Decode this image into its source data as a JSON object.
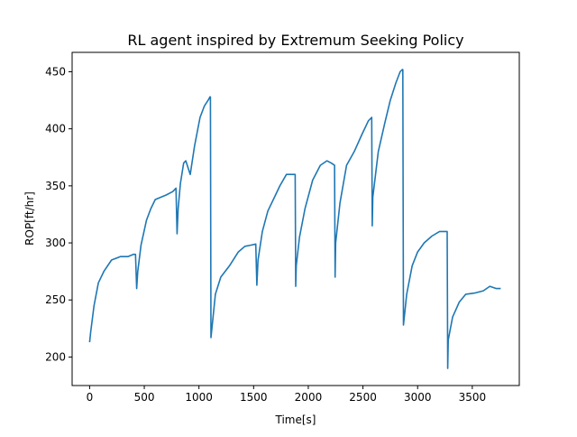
{
  "chart_data": {
    "type": "line",
    "title": "RL agent inspired by Extremum Seeking Policy",
    "xlabel": "Time[s]",
    "ylabel": "ROP[ft/hr]",
    "xlim": [
      -160,
      3930
    ],
    "ylim": [
      175,
      467
    ],
    "xticks": [
      0,
      500,
      1000,
      1500,
      2000,
      2500,
      3000,
      3500
    ],
    "yticks": [
      200,
      250,
      300,
      350,
      400,
      450
    ],
    "grid": false,
    "legend": "none",
    "series": [
      {
        "color": "#1f77b4",
        "x": [
          0,
          10,
          40,
          80,
          130,
          200,
          280,
          350,
          400,
          420,
          430,
          440,
          470,
          520,
          560,
          600,
          650,
          700,
          760,
          790,
          800,
          810,
          830,
          860,
          880,
          920,
          960,
          1010,
          1050,
          1090,
          1100,
          1105,
          1110,
          1150,
          1200,
          1280,
          1360,
          1420,
          1470,
          1520,
          1530,
          1540,
          1580,
          1630,
          1690,
          1740,
          1800,
          1840,
          1880,
          1885,
          1890,
          1920,
          1970,
          2040,
          2110,
          2170,
          2210,
          2240,
          2245,
          2250,
          2290,
          2350,
          2420,
          2490,
          2550,
          2580,
          2585,
          2590,
          2640,
          2700,
          2750,
          2800,
          2840,
          2860,
          2865,
          2870,
          2900,
          2950,
          3000,
          3060,
          3130,
          3200,
          3250,
          3270,
          3275,
          3280,
          3320,
          3380,
          3440,
          3520,
          3600,
          3660,
          3720,
          3760
        ],
        "y": [
          213,
          222,
          245,
          265,
          275,
          285,
          288,
          288,
          290,
          290,
          260,
          275,
          298,
          320,
          330,
          338,
          340,
          342,
          345,
          348,
          308,
          330,
          352,
          370,
          372,
          360,
          385,
          410,
          420,
          426,
          428,
          428,
          217,
          255,
          270,
          280,
          292,
          297,
          298,
          299,
          263,
          285,
          310,
          328,
          340,
          350,
          360,
          360,
          360,
          262,
          280,
          305,
          330,
          355,
          368,
          372,
          370,
          368,
          270,
          300,
          335,
          368,
          380,
          395,
          407,
          410,
          315,
          340,
          380,
          405,
          425,
          440,
          450,
          452,
          452,
          228,
          255,
          280,
          292,
          300,
          306,
          310,
          310,
          310,
          190,
          215,
          235,
          248,
          255,
          256,
          258,
          262,
          260,
          260
        ]
      }
    ]
  }
}
